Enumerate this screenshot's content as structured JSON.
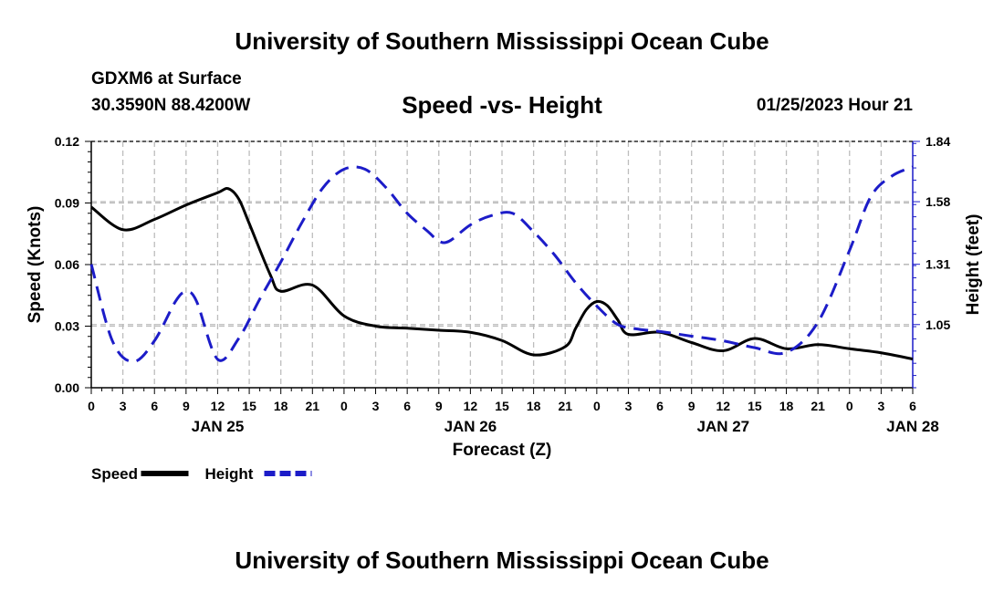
{
  "header": {
    "title": "University of Southern Mississippi Ocean Cube",
    "station": "GDXM6 at Surface",
    "coords": "30.3590N  88.4200W",
    "subtitle": "Speed -vs- Height",
    "datetime": "01/25/2023 Hour 21",
    "footer_title": "University of Southern Mississippi Ocean Cube"
  },
  "chart_data": {
    "type": "line",
    "title": "Speed -vs- Height",
    "xlabel": "Forecast (Z)",
    "ylabel_left": "Speed (Knots)",
    "ylabel_right": "Height (feet)",
    "x_range_hours": [
      0,
      78
    ],
    "x_tick_hours": [
      0,
      3,
      6,
      9,
      12,
      15,
      18,
      21,
      24,
      27,
      30,
      33,
      36,
      39,
      42,
      45,
      48,
      51,
      54,
      57,
      60,
      63,
      66,
      69,
      72,
      75,
      78
    ],
    "x_tick_labels": [
      "0",
      "3",
      "6",
      "9",
      "12",
      "15",
      "18",
      "21",
      "0",
      "3",
      "6",
      "9",
      "12",
      "15",
      "18",
      "21",
      "0",
      "3",
      "6",
      "9",
      "12",
      "15",
      "18",
      "21",
      "0",
      "3",
      "6"
    ],
    "date_labels": [
      {
        "hour": 12,
        "label": "JAN 25"
      },
      {
        "hour": 36,
        "label": "JAN 26"
      },
      {
        "hour": 60,
        "label": "JAN 27"
      },
      {
        "hour": 78,
        "label": "JAN 28"
      }
    ],
    "y_left": {
      "min": 0,
      "max": 0.12,
      "ticks": [
        "0.00",
        "0.03",
        "0.06",
        "0.09",
        "0.12"
      ]
    },
    "y_right": {
      "min": 0.7775,
      "max": 1.84,
      "ticks": [
        "1.05",
        "1.31",
        "1.58",
        "1.84"
      ]
    },
    "grid": true,
    "series": [
      {
        "name": "Speed",
        "axis": "left",
        "color": "#000000",
        "dashed": false,
        "x": [
          0,
          3,
          6,
          9,
          12,
          13,
          14,
          15,
          17,
          18,
          21,
          24,
          27,
          30,
          33,
          36,
          39,
          42,
          45,
          46,
          47,
          48,
          49,
          50,
          51,
          54,
          57,
          60,
          63,
          66,
          69,
          72,
          75,
          78
        ],
        "values": [
          0.088,
          0.077,
          0.082,
          0.089,
          0.095,
          0.097,
          0.092,
          0.08,
          0.055,
          0.047,
          0.05,
          0.035,
          0.03,
          0.029,
          0.028,
          0.027,
          0.023,
          0.016,
          0.02,
          0.029,
          0.038,
          0.042,
          0.04,
          0.033,
          0.026,
          0.027,
          0.022,
          0.018,
          0.024,
          0.019,
          0.021,
          0.019,
          0.017,
          0.014
        ]
      },
      {
        "name": "Height",
        "axis": "right",
        "color": "#1c1cc8",
        "dashed": true,
        "x": [
          0,
          2,
          4,
          6,
          8,
          9,
          10,
          12,
          14,
          16,
          18,
          20,
          22,
          24,
          26,
          28,
          30,
          32,
          33,
          34,
          36,
          38,
          40,
          42,
          44,
          46,
          48,
          50,
          52,
          54,
          57,
          60,
          63,
          66,
          69,
          72,
          74,
          76,
          78
        ],
        "values": [
          1.31,
          0.98,
          0.89,
          0.98,
          1.15,
          1.19,
          1.15,
          0.9,
          0.99,
          1.16,
          1.32,
          1.49,
          1.64,
          1.72,
          1.72,
          1.64,
          1.53,
          1.45,
          1.41,
          1.41,
          1.48,
          1.52,
          1.53,
          1.45,
          1.35,
          1.23,
          1.13,
          1.05,
          1.03,
          1.02,
          1.0,
          0.98,
          0.95,
          0.93,
          1.06,
          1.37,
          1.6,
          1.69,
          1.73
        ]
      }
    ],
    "legend": [
      {
        "label": "Speed",
        "color": "#000000",
        "dashed": false
      },
      {
        "label": "Height",
        "color": "#1c1cc8",
        "dashed": true
      }
    ],
    "legend_position": "bottom-left"
  }
}
